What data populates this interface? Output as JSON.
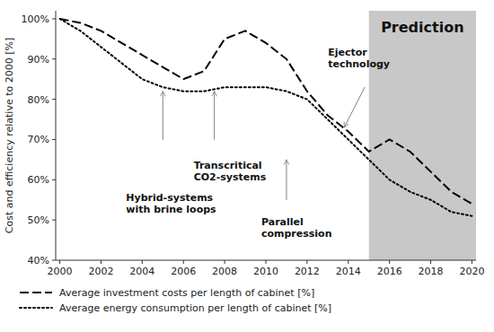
{
  "chart_data": {
    "type": "line",
    "y_label": "Cost and efficiency relative to 2000 [%]",
    "x": [
      2000,
      2001,
      2002,
      2003,
      2004,
      2005,
      2006,
      2007,
      2008,
      2009,
      2010,
      2011,
      2012,
      2013,
      2014,
      2015,
      2016,
      2017,
      2018,
      2019,
      2020
    ],
    "series": [
      {
        "name": "Average investment costs per length of cabinet [%]",
        "color": "black",
        "line_style": "dashed",
        "values": [
          100,
          99,
          97,
          94,
          91,
          88,
          85,
          87,
          95,
          97,
          94,
          90,
          82,
          76,
          72,
          67,
          70,
          67,
          62,
          57,
          54
        ]
      },
      {
        "name": "Average energy consumption per length of cabinet [%]",
        "color": "black",
        "line_style": "dotted",
        "values": [
          100,
          97,
          93,
          89,
          85,
          83,
          82,
          82,
          83,
          83,
          83,
          82,
          80,
          75,
          70,
          65,
          60,
          57,
          55,
          52,
          51
        ]
      }
    ],
    "xlim": [
      1999.8,
      2020.2
    ],
    "xticks": [
      2000,
      2002,
      2004,
      2006,
      2008,
      2010,
      2012,
      2014,
      2016,
      2018,
      2020
    ],
    "ylim": [
      40,
      102
    ],
    "yticks": [
      {
        "value": 40,
        "label": "40%"
      },
      {
        "value": 50,
        "label": "50%"
      },
      {
        "value": 60,
        "label": "60%"
      },
      {
        "value": 70,
        "label": "70%"
      },
      {
        "value": 80,
        "label": "80%"
      },
      {
        "value": 90,
        "label": "90%"
      },
      {
        "value": 100,
        "label": "100%"
      }
    ],
    "shaded_region": {
      "start": 2015,
      "label": "Prediction",
      "color": "#c8c8c8"
    },
    "annotations": [
      {
        "text": "Hybrid-systems\nwith brine loops",
        "x": 2005.0,
        "y": 82
      },
      {
        "text": "Transcritical\nCO2-systems",
        "x": 2007.5,
        "y": 82
      },
      {
        "text": "Parallel\ncompression",
        "x": 2011.0,
        "y": 65
      },
      {
        "text": "Ejector\ntechnology",
        "x": 2013.8,
        "y": 73
      }
    ],
    "grid": false,
    "legend": "bottom"
  }
}
